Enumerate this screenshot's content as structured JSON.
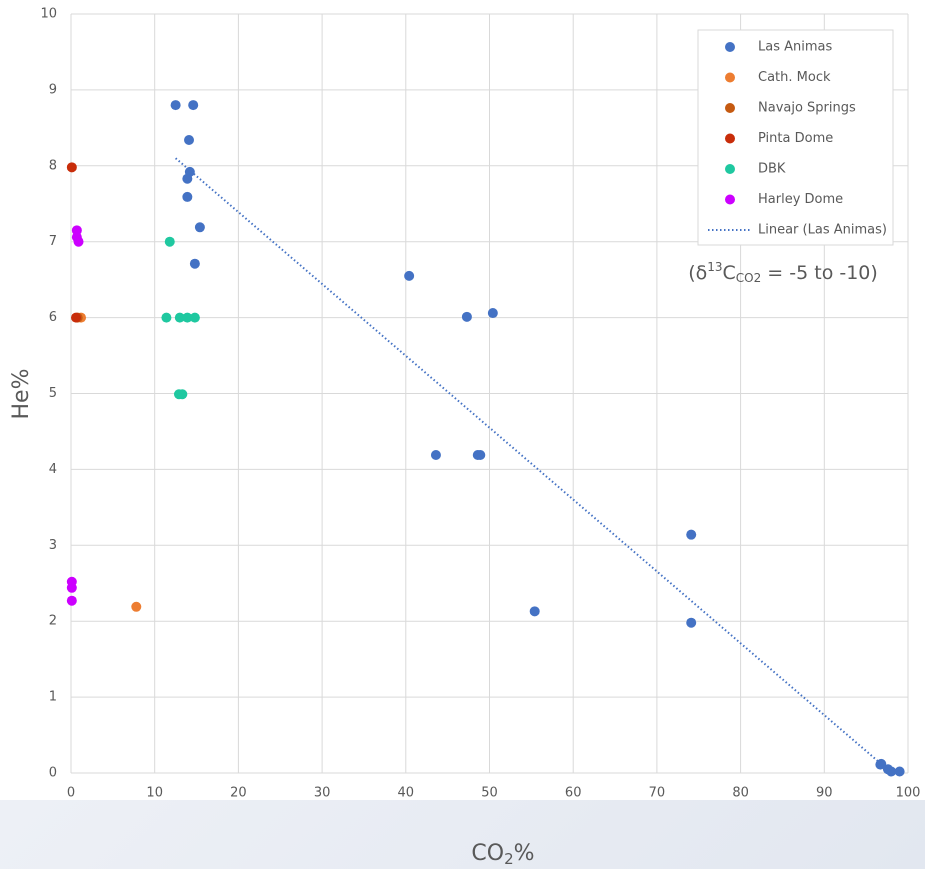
{
  "chart_data": {
    "type": "scatter",
    "x_label": [
      "CO",
      "2",
      "%"
    ],
    "y_label": "He%",
    "annotation": [
      "(δ",
      "13",
      "C",
      "CO2",
      " = -5 to -10)"
    ],
    "xlim": [
      0,
      100
    ],
    "xticks": [
      0,
      10,
      20,
      30,
      40,
      50,
      60,
      70,
      80,
      90,
      100
    ],
    "ylim": [
      0,
      10
    ],
    "yticks": [
      0,
      1,
      2,
      3,
      4,
      5,
      6,
      7,
      8,
      9,
      10
    ],
    "grid": true,
    "legend": "top-right",
    "series": [
      {
        "name": "Las Animas",
        "color": "#4472c4",
        "x": [
          12.5,
          14.6,
          14.1,
          14.2,
          13.9,
          13.9,
          15.4,
          14.8,
          40.4,
          47.3,
          50.4,
          43.6,
          48.6,
          48.9,
          74.1,
          55.4,
          74.1,
          96.7,
          96.8,
          97.6,
          98.0,
          99.0
        ],
        "y": [
          8.8,
          8.8,
          8.34,
          7.92,
          7.83,
          7.59,
          7.19,
          6.71,
          6.55,
          6.01,
          6.06,
          4.19,
          4.19,
          4.19,
          3.14,
          2.13,
          1.98,
          0.11,
          0.12,
          0.05,
          0.02,
          0.02
        ]
      },
      {
        "name": "Cath. Mock",
        "color": "#ed7d31",
        "x": [
          7.8,
          1.2
        ],
        "y": [
          2.19,
          6.0
        ]
      },
      {
        "name": "Navajo Springs",
        "color": "#c55a11",
        "x": [
          0.8
        ],
        "y": [
          6.0
        ]
      },
      {
        "name": "Pinta Dome",
        "color": "#c82d0a",
        "x": [
          0.1,
          0.6
        ],
        "y": [
          7.98,
          6.0
        ]
      },
      {
        "name": "DBK",
        "color": "#1fc8a0",
        "x": [
          11.8,
          11.4,
          13.0,
          13.9,
          14.8,
          12.9,
          13.3
        ],
        "y": [
          7.0,
          6.0,
          6.0,
          6.0,
          6.0,
          4.99,
          4.99
        ]
      },
      {
        "name": "Harley Dome",
        "color": "#cc00ff",
        "x": [
          0.7,
          0.7,
          0.9,
          0.1,
          0.1,
          0.1
        ],
        "y": [
          7.15,
          7.06,
          7.0,
          2.52,
          2.44,
          2.27
        ]
      }
    ],
    "trendline": {
      "name": "Linear (Las Animas)",
      "color": "#4472c4",
      "x": [
        12.5,
        97
      ],
      "y": [
        8.1,
        0.1
      ]
    }
  }
}
